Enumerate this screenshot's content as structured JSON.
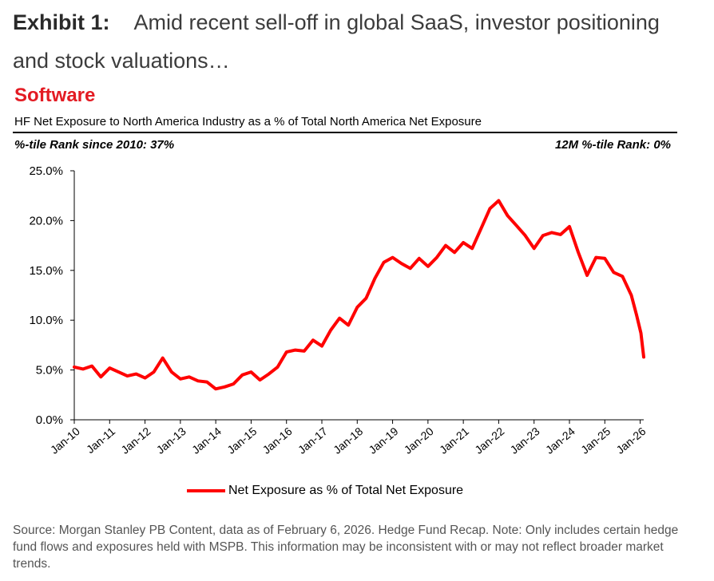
{
  "exhibit": {
    "label": "Exhibit 1:",
    "text": "Amid recent sell-off in global SaaS, investor positioning and stock valuations…"
  },
  "chart_data": {
    "type": "line",
    "title": "Software",
    "subtitle": "HF Net Exposure to North America Industry as a % of Total North America Net Exposure",
    "rank_left": "%-tile Rank since 2010: 37%",
    "rank_right": "12M %-tile Rank: 0%",
    "xlabel": "",
    "ylabel": "",
    "ylim": [
      0,
      25
    ],
    "yticks": [
      "0.0%",
      "5.0%",
      "10.0%",
      "15.0%",
      "20.0%",
      "25.0%"
    ],
    "ytick_values": [
      0,
      5,
      10,
      15,
      20,
      25
    ],
    "xlim": [
      2010.0,
      2026.1
    ],
    "xticks": [
      "Jan-10",
      "Jan-11",
      "Jan-12",
      "Jan-13",
      "Jan-14",
      "Jan-15",
      "Jan-16",
      "Jan-17",
      "Jan-18",
      "Jan-19",
      "Jan-20",
      "Jan-21",
      "Jan-22",
      "Jan-23",
      "Jan-24",
      "Jan-25",
      "Jan-26"
    ],
    "xtick_values": [
      2010,
      2011,
      2012,
      2013,
      2014,
      2015,
      2016,
      2017,
      2018,
      2019,
      2020,
      2021,
      2022,
      2023,
      2024,
      2025,
      2026
    ],
    "series": [
      {
        "name": "Net Exposure as % of Total Net Exposure",
        "color": "#ff0000",
        "x": [
          2010.0,
          2010.25,
          2010.5,
          2010.75,
          2011.0,
          2011.25,
          2011.5,
          2011.75,
          2012.0,
          2012.25,
          2012.5,
          2012.75,
          2013.0,
          2013.25,
          2013.5,
          2013.75,
          2014.0,
          2014.25,
          2014.5,
          2014.75,
          2015.0,
          2015.25,
          2015.5,
          2015.75,
          2016.0,
          2016.25,
          2016.5,
          2016.75,
          2017.0,
          2017.25,
          2017.5,
          2017.75,
          2018.0,
          2018.25,
          2018.5,
          2018.75,
          2019.0,
          2019.25,
          2019.5,
          2019.75,
          2020.0,
          2020.25,
          2020.5,
          2020.75,
          2021.0,
          2021.25,
          2021.5,
          2021.75,
          2022.0,
          2022.25,
          2022.5,
          2022.75,
          2023.0,
          2023.25,
          2023.5,
          2023.75,
          2024.0,
          2024.25,
          2024.5,
          2024.75,
          2025.0,
          2025.25,
          2025.5,
          2025.75,
          2025.9,
          2026.02,
          2026.1
        ],
        "values": [
          5.3,
          5.1,
          5.4,
          4.3,
          5.2,
          4.8,
          4.4,
          4.6,
          4.2,
          4.8,
          6.2,
          4.8,
          4.1,
          4.3,
          3.9,
          3.8,
          3.1,
          3.3,
          3.6,
          4.5,
          4.8,
          4.0,
          4.6,
          5.3,
          6.8,
          7.0,
          6.9,
          8.0,
          7.4,
          9.0,
          10.2,
          9.5,
          11.3,
          12.2,
          14.2,
          15.8,
          16.3,
          15.7,
          15.2,
          16.2,
          15.4,
          16.3,
          17.5,
          16.8,
          17.8,
          17.2,
          19.2,
          21.2,
          22.0,
          20.5,
          19.5,
          18.5,
          17.2,
          18.5,
          18.8,
          18.6,
          19.4,
          16.8,
          14.5,
          16.3,
          16.2,
          14.8,
          14.4,
          12.5,
          10.5,
          8.7,
          6.3
        ]
      }
    ],
    "legend_position": "bottom-center"
  },
  "source": "Source: Morgan Stanley PB Content, data as of February 6, 2026. Hedge Fund Recap. Note: Only includes certain hedge fund flows and exposures held with MSPB. This information may be inconsistent with or may not reflect broader market trends."
}
